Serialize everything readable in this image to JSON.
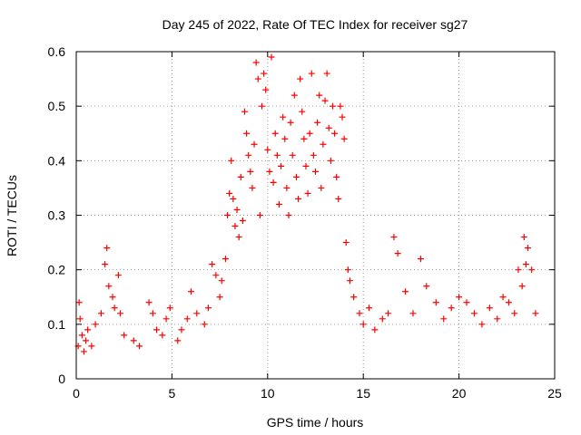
{
  "chart_data": {
    "type": "scatter",
    "title": "Day 245 of 2022, Rate Of TEC Index for receiver sg27",
    "xlabel": "GPS time / hours",
    "ylabel": "ROTI / TECUs",
    "xlim": [
      0,
      25
    ],
    "ylim": [
      0,
      0.6
    ],
    "xticks": [
      "0",
      "5",
      "10",
      "15",
      "20",
      "25"
    ],
    "yticks": [
      "0",
      "0.1",
      "0.2",
      "0.3",
      "0.4",
      "0.5",
      "0.6"
    ],
    "grid": true,
    "marker": "+",
    "color": "#ff0000",
    "series": [
      {
        "x": [
          0.1,
          0.15,
          0.2,
          0.3,
          0.4,
          0.5,
          0.6,
          0.8,
          1.0,
          1.3,
          1.5,
          1.6,
          1.7,
          1.9,
          2.0,
          2.2,
          2.3,
          2.5,
          3.0,
          3.3,
          3.8,
          4.0,
          4.2,
          4.5,
          4.7,
          4.9,
          5.3,
          5.5,
          5.8,
          6.0,
          6.3,
          6.7,
          6.9,
          7.1,
          7.3,
          7.5,
          7.6,
          7.8,
          7.9,
          8.0,
          8.1,
          8.2,
          8.3,
          8.4,
          8.5,
          8.6,
          8.7,
          8.8,
          8.9,
          9.0,
          9.1,
          9.2,
          9.3,
          9.4,
          9.5,
          9.6,
          9.7,
          9.8,
          9.9,
          10.0,
          10.1,
          10.2,
          10.3,
          10.4,
          10.5,
          10.6,
          10.7,
          10.8,
          10.9,
          11.0,
          11.1,
          11.2,
          11.3,
          11.4,
          11.5,
          11.6,
          11.7,
          11.8,
          11.9,
          12.0,
          12.1,
          12.2,
          12.3,
          12.4,
          12.5,
          12.6,
          12.7,
          12.8,
          12.9,
          13.0,
          13.1,
          13.2,
          13.3,
          13.4,
          13.5,
          13.6,
          13.7,
          13.8,
          13.9,
          14.0,
          14.1,
          14.2,
          14.3,
          14.5,
          14.8,
          15.0,
          15.3,
          15.6,
          16.0,
          16.3,
          16.6,
          16.8,
          17.2,
          17.6,
          18.0,
          18.3,
          18.8,
          19.2,
          19.6,
          20.0,
          20.4,
          20.8,
          21.2,
          21.6,
          22.0,
          22.3,
          22.6,
          22.9,
          23.1,
          23.3,
          23.4,
          23.5,
          23.6,
          23.8,
          24.0
        ],
        "y": [
          0.06,
          0.14,
          0.11,
          0.08,
          0.05,
          0.07,
          0.09,
          0.06,
          0.1,
          0.12,
          0.21,
          0.24,
          0.17,
          0.15,
          0.13,
          0.19,
          0.12,
          0.08,
          0.07,
          0.06,
          0.14,
          0.12,
          0.09,
          0.08,
          0.11,
          0.13,
          0.07,
          0.09,
          0.11,
          0.16,
          0.12,
          0.1,
          0.13,
          0.21,
          0.19,
          0.15,
          0.18,
          0.22,
          0.3,
          0.34,
          0.4,
          0.33,
          0.28,
          0.31,
          0.26,
          0.37,
          0.29,
          0.49,
          0.45,
          0.41,
          0.38,
          0.35,
          0.43,
          0.58,
          0.55,
          0.3,
          0.5,
          0.56,
          0.53,
          0.42,
          0.38,
          0.59,
          0.36,
          0.45,
          0.41,
          0.32,
          0.39,
          0.48,
          0.44,
          0.35,
          0.3,
          0.47,
          0.41,
          0.52,
          0.37,
          0.33,
          0.55,
          0.49,
          0.44,
          0.39,
          0.34,
          0.45,
          0.56,
          0.41,
          0.38,
          0.47,
          0.52,
          0.35,
          0.43,
          0.51,
          0.56,
          0.46,
          0.4,
          0.5,
          0.45,
          0.37,
          0.33,
          0.5,
          0.48,
          0.44,
          0.25,
          0.2,
          0.18,
          0.15,
          0.12,
          0.1,
          0.13,
          0.09,
          0.11,
          0.12,
          0.26,
          0.23,
          0.16,
          0.12,
          0.22,
          0.17,
          0.14,
          0.11,
          0.13,
          0.15,
          0.14,
          0.12,
          0.1,
          0.13,
          0.11,
          0.15,
          0.14,
          0.12,
          0.2,
          0.17,
          0.26,
          0.21,
          0.24,
          0.2,
          0.12
        ]
      }
    ]
  }
}
